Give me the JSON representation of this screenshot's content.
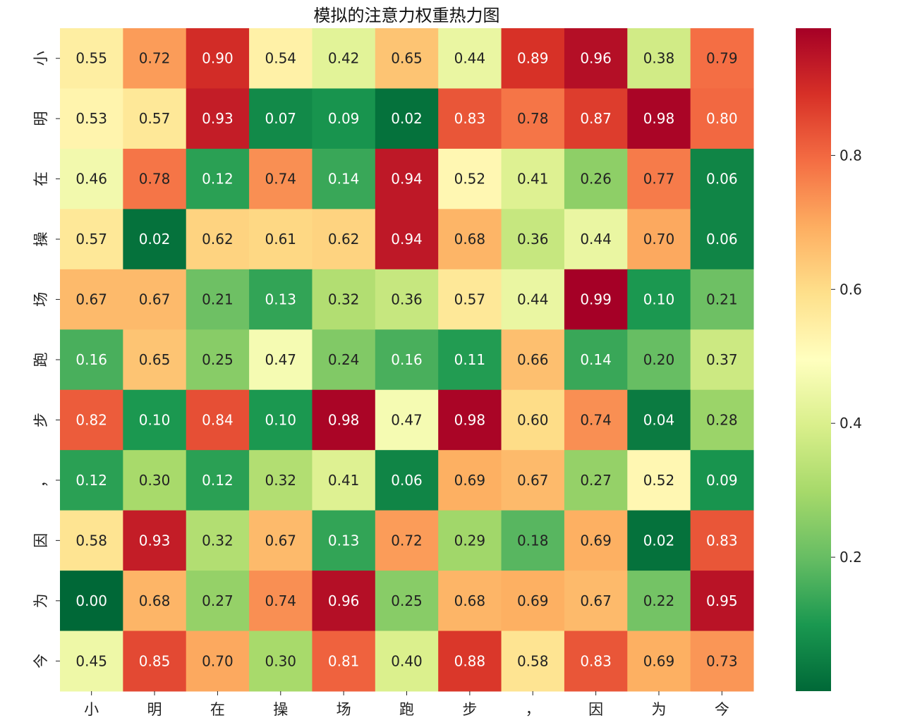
{
  "chart_data": {
    "type": "heatmap",
    "title": "模拟的注意力权重热力图",
    "xlabel": "",
    "ylabel": "",
    "x_labels": [
      "小",
      "明",
      "在",
      "操",
      "场",
      "跑",
      "步",
      "，",
      "因",
      "为",
      "今"
    ],
    "y_labels": [
      "小",
      "明",
      "在",
      "操",
      "场",
      "跑",
      "步",
      "，",
      "因",
      "为",
      "今"
    ],
    "values": [
      [
        0.55,
        0.72,
        0.9,
        0.54,
        0.42,
        0.65,
        0.44,
        0.89,
        0.96,
        0.38,
        0.79
      ],
      [
        0.53,
        0.57,
        0.93,
        0.07,
        0.09,
        0.02,
        0.83,
        0.78,
        0.87,
        0.98,
        0.8
      ],
      [
        0.46,
        0.78,
        0.12,
        0.74,
        0.14,
        0.94,
        0.52,
        0.41,
        0.26,
        0.77,
        0.06
      ],
      [
        0.57,
        0.02,
        0.62,
        0.61,
        0.62,
        0.94,
        0.68,
        0.36,
        0.44,
        0.7,
        0.06
      ],
      [
        0.67,
        0.67,
        0.21,
        0.13,
        0.32,
        0.36,
        0.57,
        0.44,
        0.99,
        0.1,
        0.21
      ],
      [
        0.16,
        0.65,
        0.25,
        0.47,
        0.24,
        0.16,
        0.11,
        0.66,
        0.14,
        0.2,
        0.37
      ],
      [
        0.82,
        0.1,
        0.84,
        0.1,
        0.98,
        0.47,
        0.98,
        0.6,
        0.74,
        0.04,
        0.28
      ],
      [
        0.12,
        0.3,
        0.12,
        0.32,
        0.41,
        0.06,
        0.69,
        0.67,
        0.27,
        0.52,
        0.09
      ],
      [
        0.58,
        0.93,
        0.32,
        0.67,
        0.13,
        0.72,
        0.29,
        0.18,
        0.69,
        0.02,
        0.83
      ],
      [
        0.0,
        0.68,
        0.27,
        0.74,
        0.96,
        0.25,
        0.68,
        0.69,
        0.67,
        0.22,
        0.95
      ],
      [
        0.45,
        0.85,
        0.7,
        0.3,
        0.81,
        0.4,
        0.88,
        0.58,
        0.83,
        0.69,
        0.73
      ]
    ],
    "colormap": "RdYlGn_r",
    "vmin": 0.0,
    "vmax": 0.99,
    "colorbar_ticks": [
      0.2,
      0.4,
      0.6,
      0.8
    ],
    "colorbar_tick_labels": [
      "0.2",
      "0.4",
      "0.6",
      "0.8"
    ],
    "annotations": true,
    "annotation_format": "0.00",
    "grid": false,
    "legend": "colorbar-right"
  }
}
